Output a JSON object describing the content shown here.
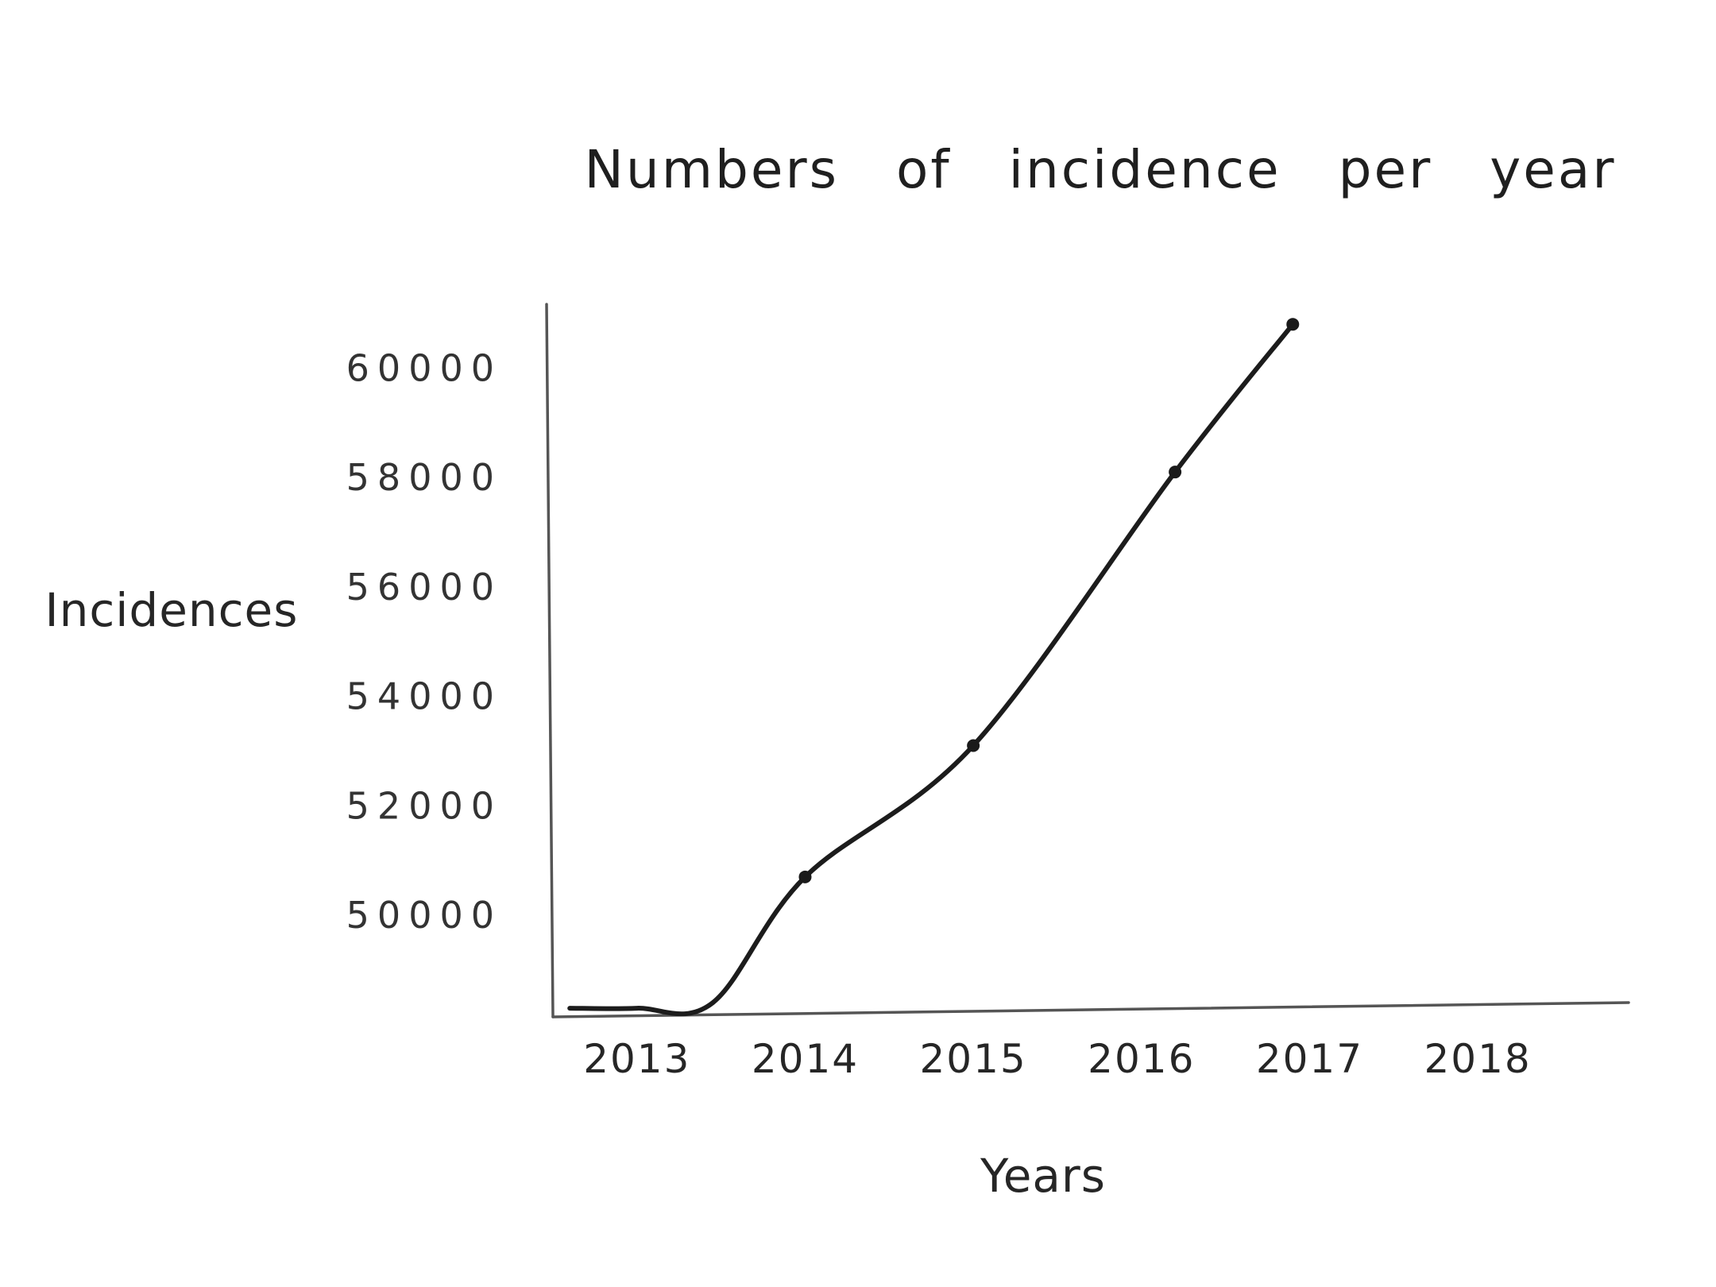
{
  "chart_data": {
    "type": "line",
    "title": "Numbers of incidence per year",
    "xlabel": "Years",
    "ylabel": "Incidences",
    "x_tick_labels": [
      "2013",
      "2014",
      "2015",
      "2016",
      "2017",
      "2018"
    ],
    "y_tick_labels": [
      "60000",
      "58000",
      "56000",
      "54000",
      "52000",
      "50000"
    ],
    "series": [
      {
        "values": [
          {
            "x": 2012.6,
            "y": 48300
          },
          {
            "x": 2013.0,
            "y": 48300
          },
          {
            "x": 2013.45,
            "y": 48400
          },
          {
            "x": 2014.0,
            "y": 50700
          },
          {
            "x": 2015.0,
            "y": 53100
          },
          {
            "x": 2016.2,
            "y": 58100
          },
          {
            "x": 2016.9,
            "y": 60800
          }
        ],
        "markers": [
          {
            "x": 2014.0,
            "y": 50700
          },
          {
            "x": 2015.0,
            "y": 53100
          },
          {
            "x": 2016.2,
            "y": 58100
          },
          {
            "x": 2016.9,
            "y": 60800
          }
        ]
      }
    ],
    "xlim": [
      2012.5,
      2018.85
    ],
    "ylim": [
      48200,
      61500
    ],
    "grid": false,
    "legend": "none"
  }
}
